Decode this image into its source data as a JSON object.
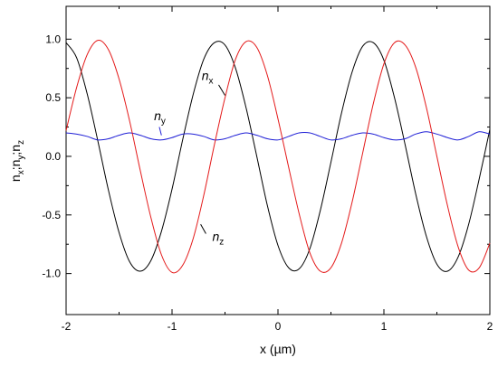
{
  "chart_data": {
    "type": "line",
    "title": "",
    "xlabel": "x (µm)",
    "ylabel_parts": {
      "n1": "n",
      "s1": "x",
      "sep1": ";n",
      "s2": "y",
      "sep2": ";n",
      "s3": "z"
    },
    "xlim": [
      -2,
      2
    ],
    "ylim": [
      -1.35,
      1.28
    ],
    "xticks": [
      -2,
      -1,
      0,
      1,
      2
    ],
    "yticks": [
      -1.0,
      -0.5,
      0.0,
      0.5,
      1.0
    ],
    "xtick_labels": [
      "-2",
      "-1",
      "0",
      "1",
      "2"
    ],
    "ytick_labels": [
      "-1.0",
      "-0.5",
      "0.0",
      "0.5",
      "1.0"
    ],
    "grid": false,
    "x": [
      -2.0,
      -1.9,
      -1.8,
      -1.7,
      -1.6,
      -1.5,
      -1.4,
      -1.3,
      -1.2,
      -1.1,
      -1.0,
      -0.9,
      -0.8,
      -0.7,
      -0.6,
      -0.5,
      -0.4,
      -0.3,
      -0.2,
      -0.1,
      0.0,
      0.1,
      0.2,
      0.3,
      0.4,
      0.5,
      0.6,
      0.7,
      0.8,
      0.9,
      1.0,
      1.1,
      1.2,
      1.3,
      1.4,
      1.5,
      1.6,
      1.7,
      1.8,
      1.9,
      2.0
    ],
    "series": [
      {
        "name": "n",
        "sub": "x",
        "color": "#000000",
        "values": [
          0.97,
          0.84,
          0.53,
          0.13,
          -0.29,
          -0.65,
          -0.9,
          -0.98,
          -0.89,
          -0.64,
          -0.28,
          0.14,
          0.53,
          0.83,
          0.97,
          0.95,
          0.75,
          0.41,
          0.0,
          -0.42,
          -0.76,
          -0.95,
          -0.96,
          -0.79,
          -0.46,
          -0.05,
          0.37,
          0.72,
          0.94,
          0.97,
          0.82,
          0.5,
          0.1,
          -0.32,
          -0.68,
          -0.92,
          -0.98,
          -0.86,
          -0.58,
          -0.19,
          0.23
        ]
      },
      {
        "name": "n",
        "sub": "y",
        "color": "#1f1fd6",
        "values": [
          0.2,
          0.19,
          0.17,
          0.14,
          0.15,
          0.18,
          0.2,
          0.18,
          0.15,
          0.14,
          0.16,
          0.19,
          0.19,
          0.17,
          0.14,
          0.15,
          0.18,
          0.2,
          0.18,
          0.15,
          0.14,
          0.17,
          0.2,
          0.2,
          0.17,
          0.14,
          0.15,
          0.18,
          0.2,
          0.19,
          0.16,
          0.14,
          0.15,
          0.19,
          0.21,
          0.19,
          0.16,
          0.14,
          0.17,
          0.21,
          0.19
        ]
      },
      {
        "name": "n",
        "sub": "z",
        "color": "#e41a1a",
        "values": [
          0.22,
          0.59,
          0.87,
          0.99,
          0.91,
          0.66,
          0.3,
          -0.12,
          -0.52,
          -0.84,
          -0.99,
          -0.93,
          -0.7,
          -0.33,
          0.1,
          0.5,
          0.83,
          0.98,
          0.93,
          0.69,
          0.32,
          -0.09,
          -0.49,
          -0.82,
          -0.98,
          -0.95,
          -0.74,
          -0.39,
          0.03,
          0.45,
          0.79,
          0.97,
          0.95,
          0.76,
          0.42,
          0.0,
          -0.42,
          -0.77,
          -0.97,
          -0.95,
          -0.74
        ]
      }
    ],
    "annotations": [
      {
        "name": "n",
        "sub": "x",
        "x": -0.72,
        "y": 0.65,
        "leader_x1": -0.56,
        "leader_y1": 0.61,
        "leader_x2": -0.5,
        "leader_y2": 0.52,
        "color": "#000000"
      },
      {
        "name": "n",
        "sub": "y",
        "x": -1.17,
        "y": 0.31,
        "leader_x1": -1.12,
        "leader_y1": 0.25,
        "leader_x2": -1.1,
        "leader_y2": 0.18,
        "color": "#1f1fd6"
      },
      {
        "name": "n",
        "sub": "z",
        "x": -0.62,
        "y": -0.72,
        "leader_x1": -0.68,
        "leader_y1": -0.66,
        "leader_x2": -0.73,
        "leader_y2": -0.58,
        "color": "#000000"
      }
    ]
  }
}
